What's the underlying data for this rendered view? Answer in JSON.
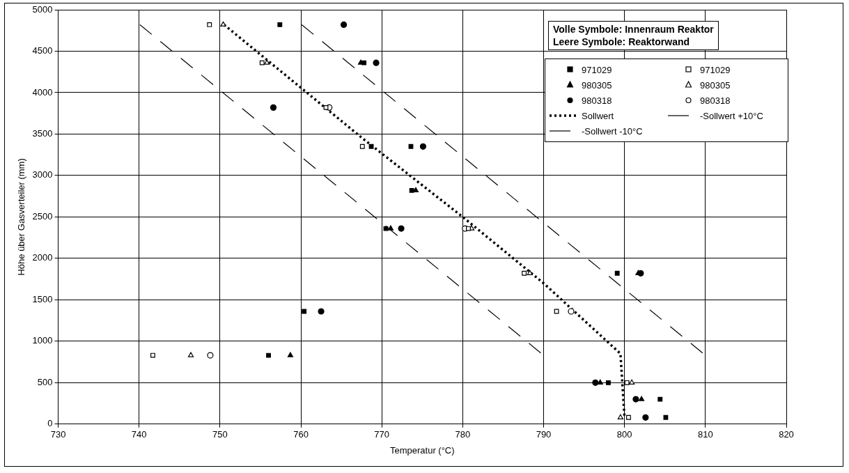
{
  "chart_data": {
    "type": "scatter",
    "xlabel": "Temperatur (°C)",
    "ylabel": "Höhe über Gasverteiler (mm)",
    "xlim": [
      730,
      820
    ],
    "xticks": [
      730,
      740,
      750,
      760,
      770,
      780,
      790,
      800,
      810,
      820
    ],
    "ylim": [
      0,
      5000
    ],
    "yticks": [
      0,
      500,
      1000,
      1500,
      2000,
      2500,
      3000,
      3500,
      4000,
      4500,
      5000
    ],
    "grid": true,
    "legend": "top right",
    "annotations": [
      "Volle Symbole: Innenraum Reaktor",
      "Leere Symbole: Reaktorwand"
    ],
    "series": [
      {
        "name": "971029",
        "color": "#000000",
        "marker": "square",
        "x": [
          757.4,
          767.8,
          768.7,
          773.6,
          773.7,
          770.5,
          799.1,
          760.4,
          756.0,
          798.0,
          804.4,
          805.1
        ],
        "values": [
          4820,
          4360,
          3350,
          3350,
          2820,
          2360,
          1820,
          1360,
          830,
          500,
          300,
          80
        ]
      },
      {
        "name": "971029",
        "color": "#000000",
        "marker": "square-open",
        "x": [
          748.7,
          755.2,
          763.1,
          767.6,
          780.7,
          787.6,
          791.6,
          741.7,
          800.3,
          800.5
        ],
        "values": [
          4820,
          4360,
          3820,
          3350,
          2360,
          1820,
          1360,
          830,
          500,
          80
        ]
      },
      {
        "name": "980305",
        "color": "#000000",
        "marker": "triangle",
        "x": [
          767.4,
          774.2,
          771.1,
          801.7,
          758.7,
          797.0,
          802.1
        ],
        "values": [
          4360,
          2820,
          2360,
          1820,
          830,
          500,
          300
        ]
      },
      {
        "name": "980305",
        "color": "#000000",
        "marker": "triangle-open",
        "x": [
          750.4,
          755.8,
          781.1,
          788.3,
          746.4,
          800.9,
          799.5
        ],
        "values": [
          4820,
          4360,
          2360,
          1820,
          830,
          500,
          80
        ]
      },
      {
        "name": "980318",
        "color": "#000000",
        "marker": "circle",
        "x": [
          765.3,
          769.3,
          756.6,
          775.1,
          772.4,
          802.0,
          762.5,
          796.4,
          801.4,
          802.6
        ],
        "values": [
          4820,
          4360,
          3820,
          3350,
          2360,
          1820,
          1360,
          500,
          300,
          80
        ]
      },
      {
        "name": "980318",
        "color": "#000000",
        "marker": "circle-open",
        "x": [
          763.5,
          780.3,
          793.4,
          748.8
        ],
        "values": [
          3820,
          2360,
          1360,
          830
        ]
      },
      {
        "name": "Sollwert",
        "type": "line",
        "color": "#000000",
        "marker": "none",
        "line_style": "dotted",
        "x": [
          750.5,
          767.6,
          780,
          790,
          799.5,
          800
        ],
        "values": [
          4820,
          3450,
          2500,
          1700,
          850,
          80
        ]
      },
      {
        "name": "-Sollwert +10°C",
        "type": "line",
        "color": "#000000",
        "marker": "none",
        "line_style": "dashed",
        "x": [
          760.1,
          810
        ],
        "values": [
          4820,
          830
        ]
      },
      {
        "name": "-Sollwert -10°C",
        "type": "line",
        "color": "#000000",
        "marker": "none",
        "line_style": "dashed",
        "x": [
          740.1,
          790
        ],
        "values": [
          4820,
          830
        ]
      }
    ]
  }
}
